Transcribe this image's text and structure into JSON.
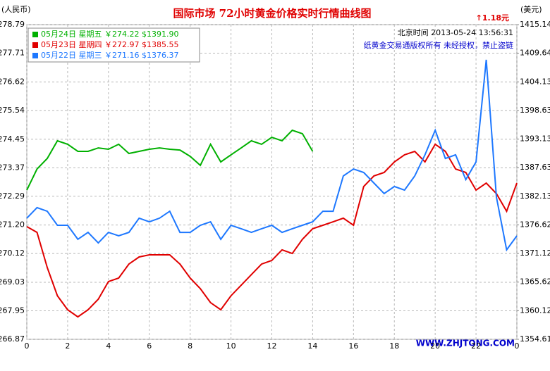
{
  "chart_data": {
    "type": "line",
    "title": "国际市场 72小时黄金价格实时行情曲线图",
    "unit_left": "(人民币)",
    "unit_right": "(美元)",
    "change": "↑1.18元",
    "time_label": "北京时间 2013-05-24 13:56:31",
    "copyright": "纸黄金交易通版权所有 未经授权，禁止盗链",
    "watermark": "WWW.ZHJTONG.COM",
    "xlim": [
      0,
      24
    ],
    "xticks": [
      0,
      2,
      4,
      6,
      8,
      10,
      12,
      14,
      16,
      18,
      20,
      22,
      {
        "value": 24,
        "label": "0"
      }
    ],
    "ylim": [
      266.87,
      278.79
    ],
    "yticks": [
      266.87,
      267.95,
      269.03,
      270.12,
      {
        "value": 271.2,
        "label": "271.20"
      },
      272.29,
      273.37,
      274.45,
      275.54,
      276.62,
      277.71,
      278.79
    ],
    "y2lim": [
      1354.61,
      1415.14
    ],
    "y2ticks": [
      1354.61,
      1360.12,
      1365.62,
      1371.12,
      1376.62,
      1382.13,
      1387.63,
      1393.13,
      1398.63,
      1404.13,
      1409.64,
      1415.14
    ],
    "grid": true,
    "x": [
      0,
      0.5,
      1,
      1.5,
      2,
      2.5,
      3,
      3.5,
      4,
      4.5,
      5,
      5.5,
      6,
      6.5,
      7,
      7.5,
      8,
      8.5,
      9,
      9.5,
      10,
      10.5,
      11,
      11.5,
      12,
      12.5,
      13,
      13.5,
      14,
      14.5,
      15,
      15.5,
      16,
      16.5,
      17,
      17.5,
      18,
      18.5,
      19,
      19.5,
      20,
      20.5,
      21,
      21.5,
      22,
      22.5,
      23,
      23.5,
      24
    ],
    "series": [
      {
        "name": "05月24日 星期五 ￥274.22 $1391.90",
        "color": "#00b000",
        "values": [
          272.52,
          273.32,
          273.72,
          274.39,
          274.26,
          273.99,
          273.99,
          274.12,
          274.07,
          274.26,
          273.91,
          273.99,
          274.07,
          274.12,
          274.07,
          274.04,
          273.8,
          273.46,
          274.26,
          273.59,
          273.86,
          274.12,
          274.39,
          274.26,
          274.52,
          274.39,
          274.79,
          274.66,
          273.99,
          null,
          null,
          null,
          null,
          null,
          null,
          null,
          null,
          null,
          null,
          null,
          null,
          null,
          null,
          null,
          null,
          null,
          null,
          null,
          null
        ]
      },
      {
        "name": "05月23日 星期四 ￥272.97 $1385.55",
        "color": "#e00000",
        "values": [
          271.14,
          270.92,
          269.59,
          268.52,
          267.99,
          267.72,
          267.99,
          268.39,
          269.06,
          269.19,
          269.72,
          269.99,
          270.07,
          270.07,
          270.07,
          269.72,
          269.19,
          268.79,
          268.26,
          267.99,
          268.52,
          268.92,
          269.32,
          269.72,
          269.86,
          270.26,
          270.12,
          270.66,
          271.06,
          271.19,
          271.32,
          271.46,
          271.19,
          272.66,
          273.06,
          273.19,
          273.59,
          273.86,
          273.99,
          273.59,
          274.26,
          273.99,
          273.32,
          273.19,
          272.52,
          272.79,
          272.39,
          271.72,
          272.79
        ]
      },
      {
        "name": "05月22日 星期三 ￥271.16 $1376.37",
        "color": "#1e78ff",
        "values": [
          271.46,
          271.86,
          271.72,
          271.19,
          271.19,
          270.66,
          270.92,
          270.52,
          270.92,
          270.79,
          270.92,
          271.46,
          271.32,
          271.46,
          271.72,
          270.92,
          270.92,
          271.19,
          271.32,
          270.66,
          271.19,
          271.06,
          270.92,
          271.06,
          271.19,
          270.92,
          271.06,
          271.19,
          271.32,
          271.72,
          271.72,
          273.06,
          273.32,
          273.19,
          272.79,
          272.39,
          272.66,
          272.52,
          273.06,
          273.86,
          274.79,
          273.72,
          273.86,
          272.92,
          273.59,
          277.46,
          272.26,
          270.26,
          270.79
        ]
      }
    ]
  }
}
